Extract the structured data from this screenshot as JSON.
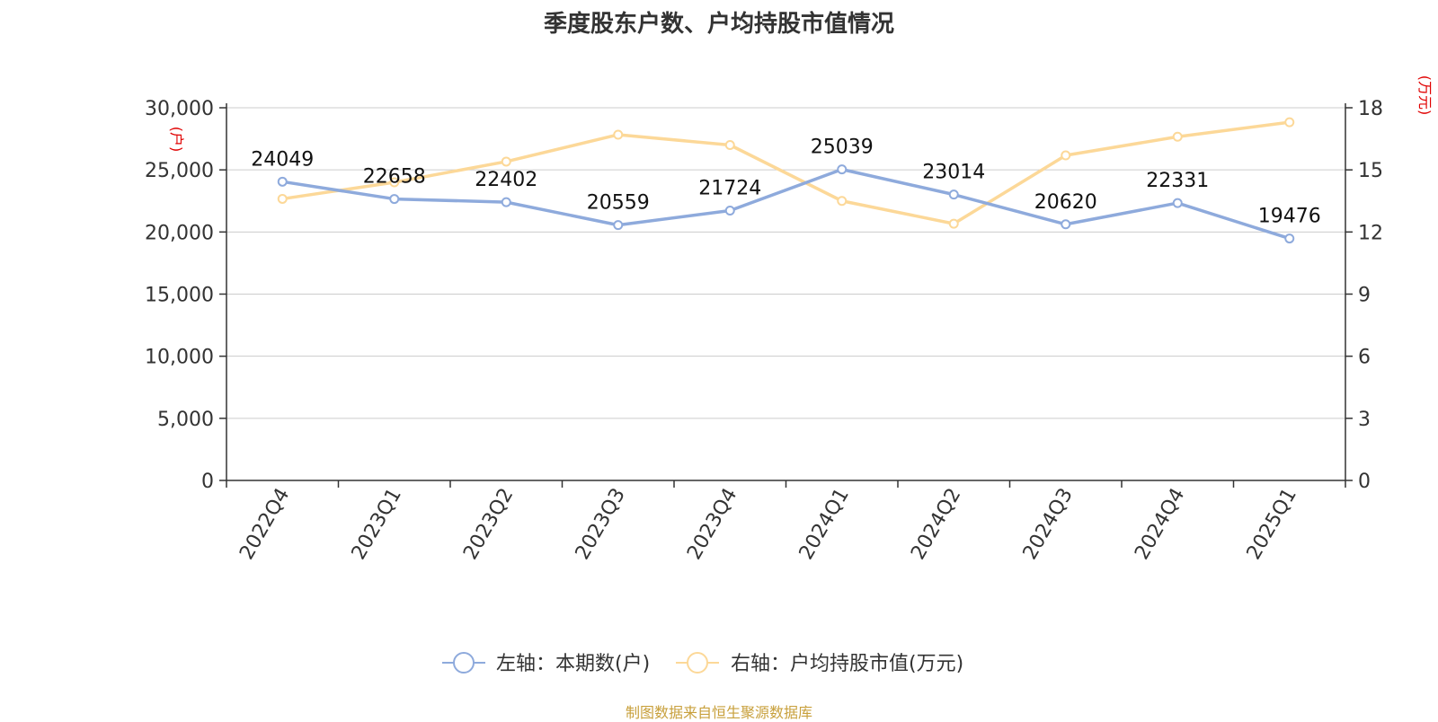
{
  "title": "季度股东户数、户均持股市值情况",
  "source": "制图数据来自恒生聚源数据库",
  "chart_data": {
    "type": "line",
    "categories": [
      "2022Q4",
      "2023Q1",
      "2023Q2",
      "2023Q3",
      "2023Q4",
      "2024Q1",
      "2024Q2",
      "2024Q3",
      "2024Q4",
      "2025Q1"
    ],
    "series": [
      {
        "name": "左轴：本期数(户)",
        "axis": "left",
        "color": "#8eaadc",
        "values": [
          24049,
          22658,
          22402,
          20559,
          21724,
          25039,
          23014,
          20620,
          22331,
          19476
        ]
      },
      {
        "name": "右轴：户均持股市值(万元)",
        "axis": "right",
        "color": "#fcd898",
        "values": [
          13.6,
          14.4,
          15.4,
          16.7,
          16.2,
          13.5,
          12.4,
          15.7,
          16.6,
          17.3
        ]
      }
    ],
    "left_axis": {
      "unit": "(户)",
      "ylim": [
        0,
        30000
      ],
      "ticks": [
        "0",
        "5,000",
        "10,000",
        "15,000",
        "20,000",
        "25,000",
        "30,000"
      ]
    },
    "right_axis": {
      "unit": "(万元)",
      "ylim": [
        0,
        18
      ],
      "ticks": [
        "0",
        "3",
        "6",
        "9",
        "12",
        "15",
        "18"
      ]
    },
    "grid": true,
    "legend": "bottom"
  }
}
